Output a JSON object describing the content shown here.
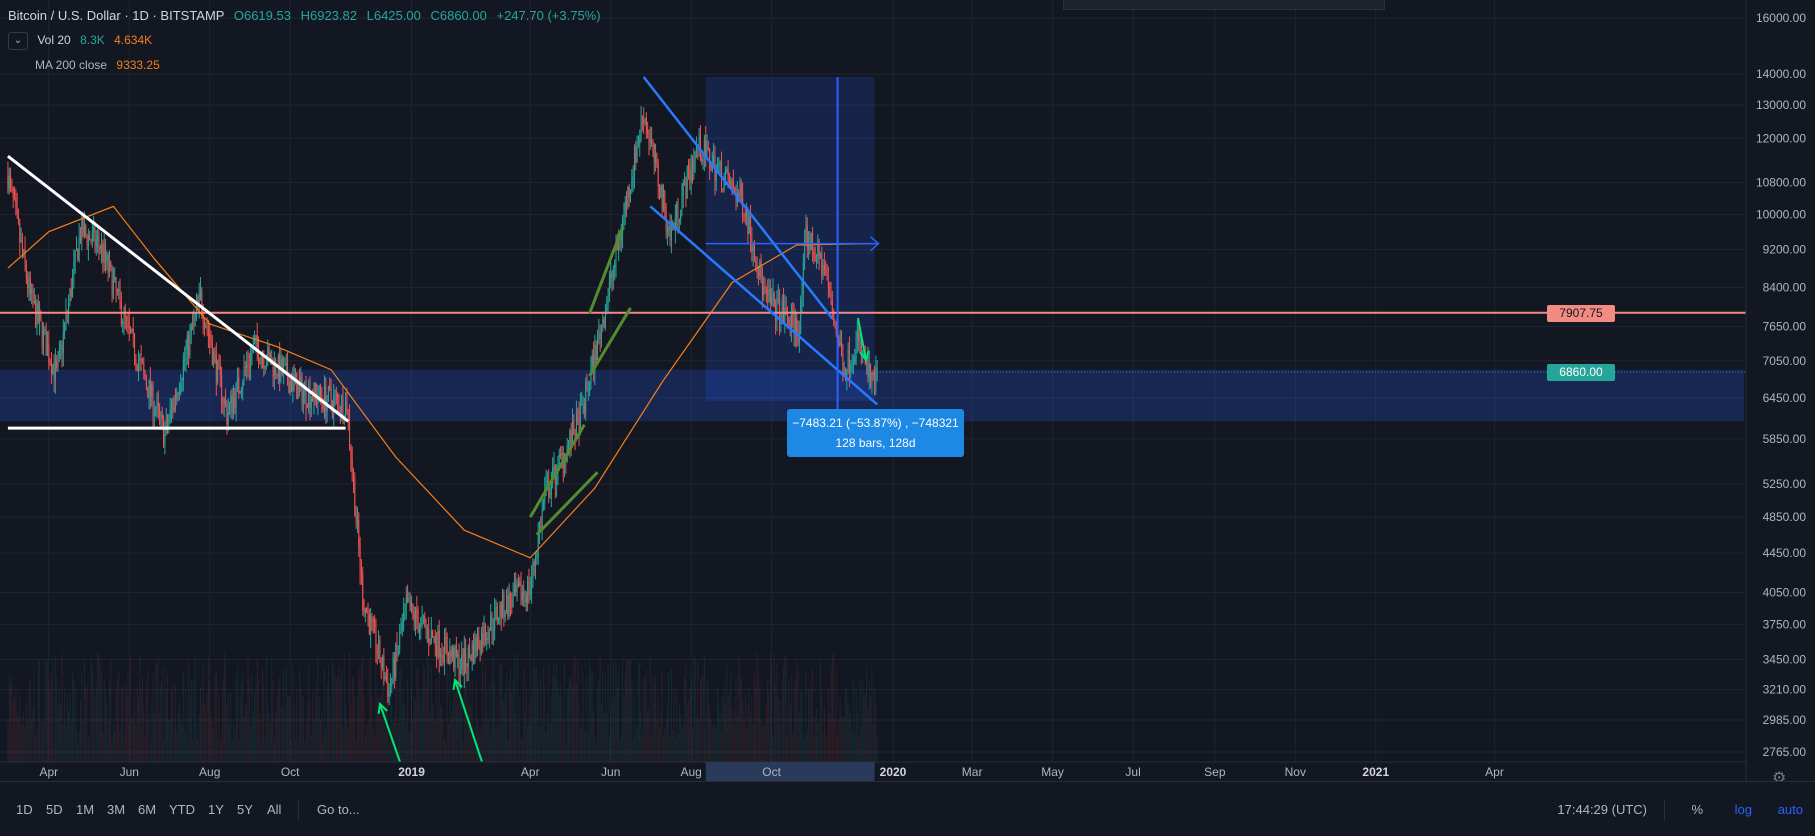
{
  "header": {
    "symbol": "Bitcoin / U.S. Dollar · 1D · BITSTAMP",
    "open": "O6619.53",
    "high": "H6923.82",
    "low": "L6425.00",
    "close": "C6860.00",
    "change": "+247.70 (+3.75%)"
  },
  "indicators": {
    "vol": {
      "label": "Vol 20",
      "v1": "8.3K",
      "v2": "4.634K"
    },
    "ma": {
      "label": "MA 200 close",
      "value": "9333.25"
    }
  },
  "measure": {
    "line1": "−7483.21 (−53.87%) , −748321",
    "line2": "128 bars, 128d"
  },
  "last_price_label": "6860.00",
  "level_label": "7907.75",
  "bottom": {
    "timeframes": [
      "1D",
      "5D",
      "1M",
      "3M",
      "6M",
      "YTD",
      "1Y",
      "5Y",
      "All"
    ],
    "goto": "Go to...",
    "clock": "17:44:29 (UTC)",
    "percent": "%",
    "log": "log",
    "auto": "auto"
  },
  "colors": {
    "background": "#131722",
    "up": "#26a69a",
    "down": "#ef5350",
    "ma": "#f57f17",
    "level": "#f28b82",
    "zone": "#2962ff",
    "channel": "#2979ff",
    "trend": "#ffffff",
    "flag": "#558b2f",
    "arrow": "#00e676"
  },
  "chart_data": {
    "type": "candlestick",
    "scale": "log",
    "y_ticks": [
      16000,
      14000,
      13000,
      12000,
      10800,
      10000,
      9200,
      8400,
      7650,
      7050,
      6450,
      5850,
      5250,
      4850,
      4450,
      4050,
      3750,
      3450,
      3210,
      2985,
      2765
    ],
    "x_ticks": [
      "Apr",
      "Jun",
      "Aug",
      "Oct",
      "2019",
      "Apr",
      "Jun",
      "Aug",
      "Oct",
      "2020",
      "Mar",
      "May",
      "Jul",
      "Sep",
      "Nov",
      "2021",
      "Apr"
    ],
    "price_anchors": [
      {
        "x": "2018-03-01",
        "y": 11000
      },
      {
        "x": "2018-03-18",
        "y": 8200
      },
      {
        "x": "2018-04-07",
        "y": 6800
      },
      {
        "x": "2018-04-25",
        "y": 9600
      },
      {
        "x": "2018-05-10",
        "y": 9300
      },
      {
        "x": "2018-06-01",
        "y": 7500
      },
      {
        "x": "2018-06-28",
        "y": 5900
      },
      {
        "x": "2018-07-25",
        "y": 8200
      },
      {
        "x": "2018-08-14",
        "y": 6200
      },
      {
        "x": "2018-09-04",
        "y": 7300
      },
      {
        "x": "2018-10-10",
        "y": 6550
      },
      {
        "x": "2018-11-13",
        "y": 6350
      },
      {
        "x": "2018-11-25",
        "y": 4000
      },
      {
        "x": "2018-12-15",
        "y": 3200
      },
      {
        "x": "2018-12-28",
        "y": 3900
      },
      {
        "x": "2019-01-20",
        "y": 3600
      },
      {
        "x": "2019-02-08",
        "y": 3400
      },
      {
        "x": "2019-03-10",
        "y": 3900
      },
      {
        "x": "2019-04-01",
        "y": 4100
      },
      {
        "x": "2019-04-12",
        "y": 5100
      },
      {
        "x": "2019-05-10",
        "y": 6200
      },
      {
        "x": "2019-06-01",
        "y": 8500
      },
      {
        "x": "2019-06-26",
        "y": 12800
      },
      {
        "x": "2019-07-16",
        "y": 9500
      },
      {
        "x": "2019-08-06",
        "y": 11800
      },
      {
        "x": "2019-09-10",
        "y": 10300
      },
      {
        "x": "2019-09-26",
        "y": 8200
      },
      {
        "x": "2019-10-22",
        "y": 7600
      },
      {
        "x": "2019-10-27",
        "y": 9500
      },
      {
        "x": "2019-11-10",
        "y": 8800
      },
      {
        "x": "2019-11-25",
        "y": 6900
      },
      {
        "x": "2019-12-05",
        "y": 7400
      },
      {
        "x": "2019-12-17",
        "y": 6600
      },
      {
        "x": "2019-12-20",
        "y": 6860
      }
    ],
    "ma200_anchors": [
      {
        "x": "2018-03-01",
        "y": 8800
      },
      {
        "x": "2018-04-01",
        "y": 9600
      },
      {
        "x": "2018-05-20",
        "y": 10200
      },
      {
        "x": "2018-06-20",
        "y": 9000
      },
      {
        "x": "2018-08-01",
        "y": 7700
      },
      {
        "x": "2018-09-20",
        "y": 7300
      },
      {
        "x": "2018-11-01",
        "y": 6900
      },
      {
        "x": "2018-12-20",
        "y": 5600
      },
      {
        "x": "2019-02-10",
        "y": 4700
      },
      {
        "x": "2019-04-01",
        "y": 4400
      },
      {
        "x": "2019-05-20",
        "y": 5200
      },
      {
        "x": "2019-07-10",
        "y": 6700
      },
      {
        "x": "2019-09-01",
        "y": 8500
      },
      {
        "x": "2019-10-20",
        "y": 9300
      },
      {
        "x": "2019-12-20",
        "y": 9333
      }
    ],
    "horizontal_level": 7907.75,
    "last_price": 6860.0,
    "support_zone": [
      6100,
      6900
    ],
    "descending_trendline": [
      {
        "x": "2018-03-01",
        "y": 11500
      },
      {
        "x": "2018-11-14",
        "y": 6100
      }
    ],
    "support_line": [
      {
        "x": "2018-03-01",
        "y": 6000
      },
      {
        "x": "2018-11-12",
        "y": 6000
      }
    ],
    "channel_upper": [
      {
        "x": "2019-06-26",
        "y": 13900
      },
      {
        "x": "2019-11-16",
        "y": 7800
      }
    ],
    "channel_lower": [
      {
        "x": "2019-07-01",
        "y": 10200
      },
      {
        "x": "2019-12-20",
        "y": 6350
      }
    ],
    "measure_box": {
      "from": "2019-08-12",
      "to": "2019-12-18",
      "top": 13900,
      "bottom": 6400
    },
    "measure_vline": "2019-11-20",
    "measure_harrow": {
      "from": "2019-08-12",
      "to": "2019-12-18",
      "y": 9330
    }
  }
}
